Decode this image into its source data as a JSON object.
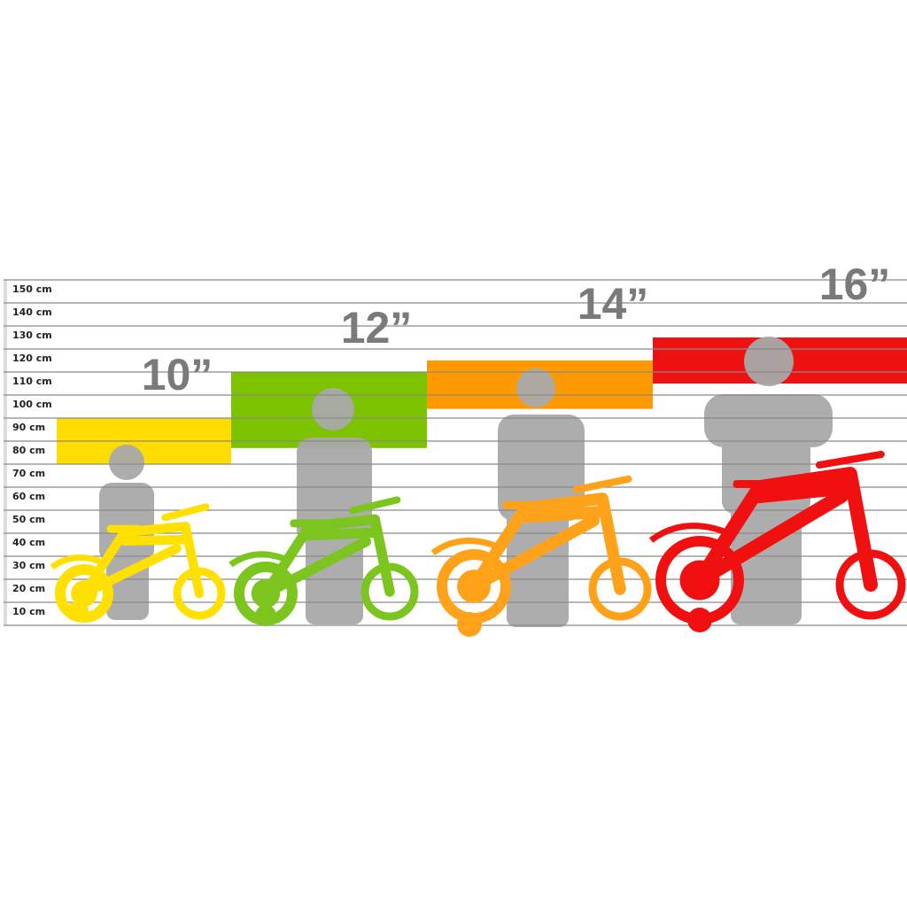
{
  "chart_data": {
    "type": "range-bar",
    "y_unit": "cm",
    "ylim": [
      0,
      150
    ],
    "y_ticks": [
      10,
      20,
      30,
      40,
      50,
      60,
      70,
      80,
      90,
      100,
      110,
      120,
      130,
      140,
      150
    ],
    "y_tick_labels": [
      "10 cm",
      "20 cm",
      "30 cm",
      "40 cm",
      "50 cm",
      "60 cm",
      "70 cm",
      "80 cm",
      "90 cm",
      "100 cm",
      "110 cm",
      "120 cm",
      "130 cm",
      "140 cm",
      "150 cm"
    ],
    "grid": true,
    "series": [
      {
        "label": "10”",
        "min": 70,
        "max": 90,
        "color": "#FFDD00"
      },
      {
        "label": "12”",
        "min": 77,
        "max": 110,
        "color": "#7DC300"
      },
      {
        "label": "14”",
        "min": 94,
        "max": 115,
        "color": "#FF9900"
      },
      {
        "label": "16”",
        "min": 105,
        "max": 125,
        "color": "#EE1111"
      }
    ]
  },
  "colors": {
    "silhouette": "#a9a9a9",
    "gridline": "#8a8a8a",
    "size_label": "#7a7a7a"
  },
  "icons": [
    "child-silhouette-icon",
    "bicycle-icon"
  ]
}
